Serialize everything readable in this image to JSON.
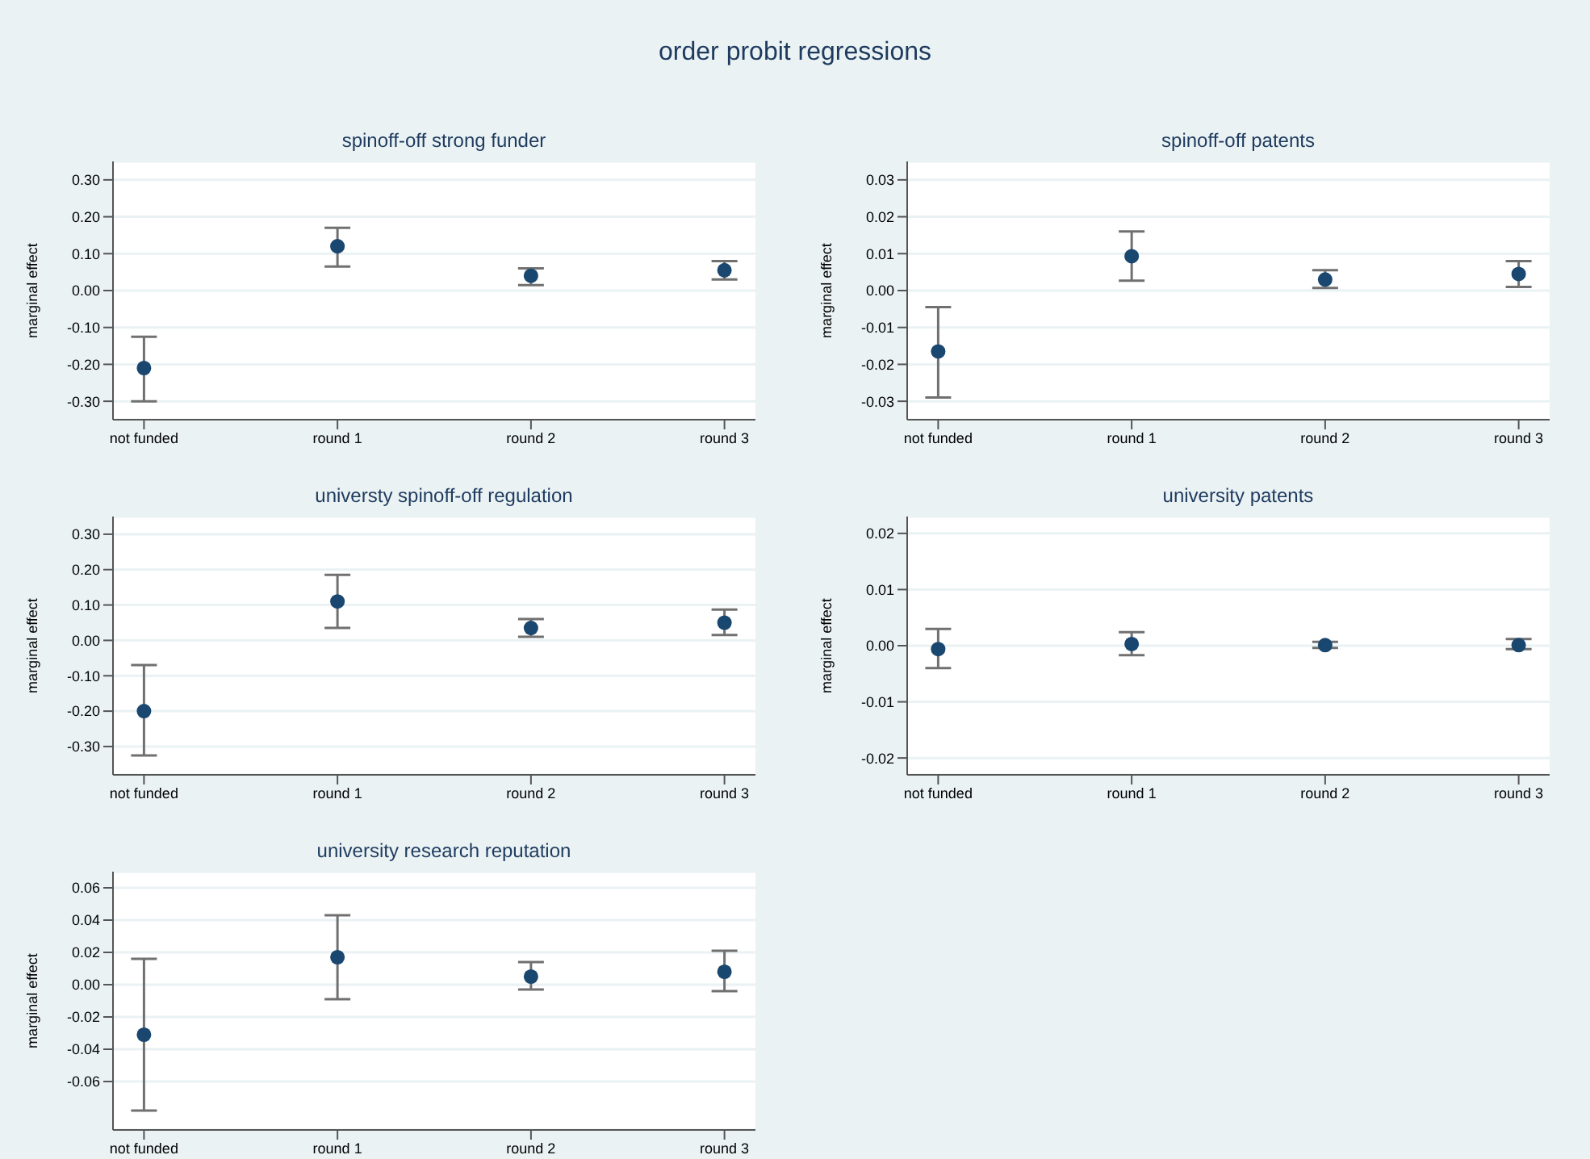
{
  "chart_data": [
    {
      "type": "scatter",
      "title": "spinoff-off strong funder",
      "ylabel": "marginal effect",
      "annotations": [
        "order probit regressions"
      ],
      "categories": [
        "not funded",
        "round 1",
        "round 2",
        "round 3"
      ],
      "color": "#1a476f",
      "marker": "circle",
      "grid": "y",
      "values": [
        -0.21,
        0.12,
        0.04,
        0.055
      ],
      "errors": [
        [
          -0.3,
          -0.125
        ],
        [
          0.065,
          0.17
        ],
        [
          0.015,
          0.06
        ],
        [
          0.03,
          0.08
        ]
      ],
      "ylim": [
        -0.35,
        0.35
      ],
      "yticks": [
        {
          "value": -0.3,
          "label": "-0.30"
        },
        {
          "value": -0.2,
          "label": "-0.20"
        },
        {
          "value": -0.1,
          "label": "-0.10"
        },
        {
          "value": 0,
          "label": "0.00"
        },
        {
          "value": 0.1,
          "label": "0.10"
        },
        {
          "value": 0.2,
          "label": "0.20"
        },
        {
          "value": 0.3,
          "label": "0.30"
        }
      ]
    },
    {
      "type": "scatter",
      "title": "spinoff-off patents",
      "ylabel": "marginal effect",
      "categories": [
        "not funded",
        "round 1",
        "round 2",
        "round 3"
      ],
      "color": "#1a476f",
      "marker": "circle",
      "grid": "y",
      "values": [
        -0.0165,
        0.0093,
        0.003,
        0.0045
      ],
      "errors": [
        [
          -0.029,
          -0.0045
        ],
        [
          0.0027,
          0.016
        ],
        [
          0.0007,
          0.0055
        ],
        [
          0.001,
          0.008
        ]
      ],
      "ylim": [
        -0.035,
        0.035
      ],
      "yticks": [
        {
          "value": -0.03,
          "label": "-0.03"
        },
        {
          "value": -0.02,
          "label": "-0.02"
        },
        {
          "value": -0.01,
          "label": "-0.01"
        },
        {
          "value": 0,
          "label": "0.00"
        },
        {
          "value": 0.01,
          "label": "0.01"
        },
        {
          "value": 0.02,
          "label": "0.02"
        },
        {
          "value": 0.03,
          "label": "0.03"
        }
      ]
    },
    {
      "type": "scatter",
      "title": "universty spinoff-off regulation",
      "ylabel": "marginal effect",
      "categories": [
        "not funded",
        "round 1",
        "round 2",
        "round 3"
      ],
      "color": "#1a476f",
      "marker": "circle",
      "grid": "y",
      "values": [
        -0.2,
        0.11,
        0.035,
        0.05
      ],
      "errors": [
        [
          -0.325,
          -0.07
        ],
        [
          0.035,
          0.185
        ],
        [
          0.01,
          0.06
        ],
        [
          0.015,
          0.087
        ]
      ],
      "ylim": [
        -0.38,
        0.35
      ],
      "yticks": [
        {
          "value": -0.3,
          "label": "-0.30"
        },
        {
          "value": -0.2,
          "label": "-0.20"
        },
        {
          "value": -0.1,
          "label": "-0.10"
        },
        {
          "value": 0,
          "label": "0.00"
        },
        {
          "value": 0.1,
          "label": "0.10"
        },
        {
          "value": 0.2,
          "label": "0.20"
        },
        {
          "value": 0.3,
          "label": "0.30"
        }
      ]
    },
    {
      "type": "scatter",
      "title": "university patents",
      "ylabel": "marginal effect",
      "categories": [
        "not funded",
        "round 1",
        "round 2",
        "round 3"
      ],
      "color": "#1a476f",
      "marker": "circle",
      "grid": "y",
      "values": [
        -0.0006,
        0.0003,
        0.0001,
        0.0001
      ],
      "errors": [
        [
          -0.004,
          0.003
        ],
        [
          -0.0017,
          0.0024
        ],
        [
          -0.0004,
          0.0007
        ],
        [
          -0.0006,
          0.0012
        ]
      ],
      "ylim": [
        -0.023,
        0.023
      ],
      "yticks": [
        {
          "value": -0.02,
          "label": "-0.02"
        },
        {
          "value": -0.01,
          "label": "-0.01"
        },
        {
          "value": 0,
          "label": "0.00"
        },
        {
          "value": 0.01,
          "label": "0.01"
        },
        {
          "value": 0.02,
          "label": "0.02"
        }
      ]
    },
    {
      "type": "scatter",
      "title": "university research reputation",
      "ylabel": "marginal effect",
      "categories": [
        "not funded",
        "round 1",
        "round 2",
        "round 3"
      ],
      "color": "#1a476f",
      "marker": "circle",
      "grid": "y",
      "values": [
        -0.031,
        0.017,
        0.005,
        0.008
      ],
      "errors": [
        [
          -0.078,
          0.016
        ],
        [
          -0.009,
          0.043
        ],
        [
          -0.003,
          0.014
        ],
        [
          -0.004,
          0.021
        ]
      ],
      "ylim": [
        -0.09,
        0.07
      ],
      "yticks": [
        {
          "value": -0.06,
          "label": "-0.06"
        },
        {
          "value": -0.04,
          "label": "-0.04"
        },
        {
          "value": -0.02,
          "label": "-0.02"
        },
        {
          "value": 0,
          "label": "0.00"
        },
        {
          "value": 0.02,
          "label": "0.02"
        },
        {
          "value": 0.04,
          "label": "0.04"
        },
        {
          "value": 0.06,
          "label": "0.06"
        }
      ]
    }
  ]
}
